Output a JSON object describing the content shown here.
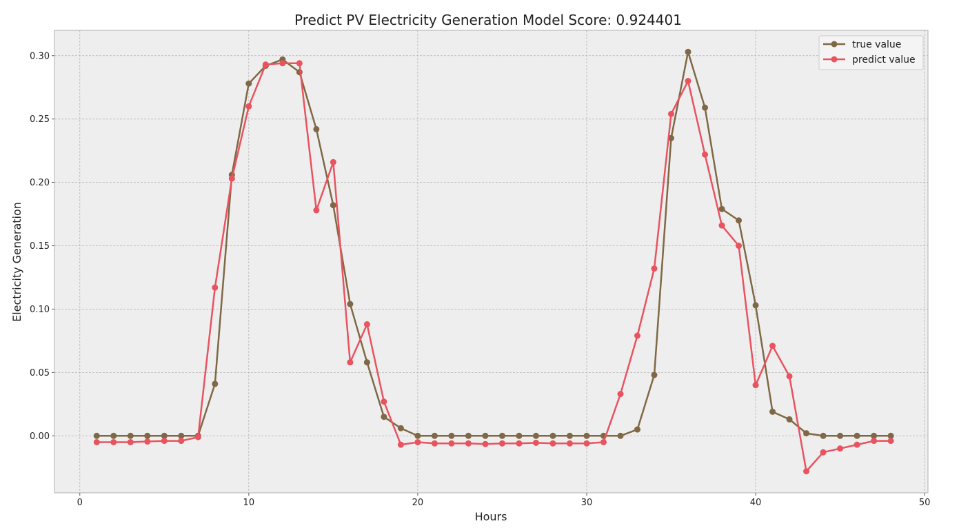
{
  "chart_data": {
    "type": "line",
    "title": "Predict PV Electricity Generation Model Score: 0.924401",
    "xlabel": "Hours",
    "ylabel": "Electricity Generation",
    "xlim": [
      -1.5,
      50.2
    ],
    "ylim": [
      -0.045,
      0.32
    ],
    "xticks": [
      0,
      10,
      20,
      30,
      40,
      50
    ],
    "xtick_labels": [
      "0",
      "10",
      "20",
      "30",
      "40",
      "50"
    ],
    "yticks": [
      0.0,
      0.05,
      0.1,
      0.15,
      0.2,
      0.25,
      0.3
    ],
    "ytick_labels": [
      "0.00",
      "0.05",
      "0.10",
      "0.15",
      "0.20",
      "0.25",
      "0.30"
    ],
    "grid": true,
    "legend": "top-right",
    "x": [
      1,
      2,
      3,
      4,
      5,
      6,
      7,
      8,
      9,
      10,
      11,
      12,
      13,
      14,
      15,
      16,
      17,
      18,
      19,
      20,
      21,
      22,
      23,
      24,
      25,
      26,
      27,
      28,
      29,
      30,
      31,
      32,
      33,
      34,
      35,
      36,
      37,
      38,
      39,
      40,
      41,
      42,
      43,
      44,
      45,
      46,
      47,
      48
    ],
    "series": [
      {
        "name": "true value",
        "color": "#7f6845",
        "values": [
          0,
          0,
          0,
          0,
          0,
          0,
          0,
          0.041,
          0.206,
          0.278,
          0.292,
          0.297,
          0.287,
          0.242,
          0.182,
          0.104,
          0.058,
          0.015,
          0.006,
          0,
          0,
          0,
          0,
          0,
          0,
          0,
          0,
          0,
          0,
          0,
          0,
          0,
          0.005,
          0.048,
          0.235,
          0.303,
          0.259,
          0.179,
          0.17,
          0.103,
          0.019,
          0.013,
          0.002,
          0,
          0,
          0,
          0,
          0
        ]
      },
      {
        "name": "predict value",
        "color": "#e8535f",
        "values": [
          -0.005,
          -0.005,
          -0.005,
          -0.0045,
          -0.004,
          -0.004,
          -0.001,
          0.117,
          0.203,
          0.26,
          0.293,
          0.294,
          0.294,
          0.178,
          0.216,
          0.058,
          0.088,
          0.027,
          -0.007,
          -0.005,
          -0.006,
          -0.006,
          -0.006,
          -0.0065,
          -0.006,
          -0.006,
          -0.0055,
          -0.006,
          -0.006,
          -0.006,
          -0.005,
          0.033,
          0.079,
          0.132,
          0.254,
          0.28,
          0.222,
          0.166,
          0.15,
          0.04,
          0.071,
          0.047,
          -0.028,
          -0.013,
          -0.01,
          -0.007,
          -0.004,
          -0.004
        ]
      }
    ]
  },
  "colors": {
    "plot_background": "#eeeeee",
    "frame": "#b0b0b0"
  }
}
